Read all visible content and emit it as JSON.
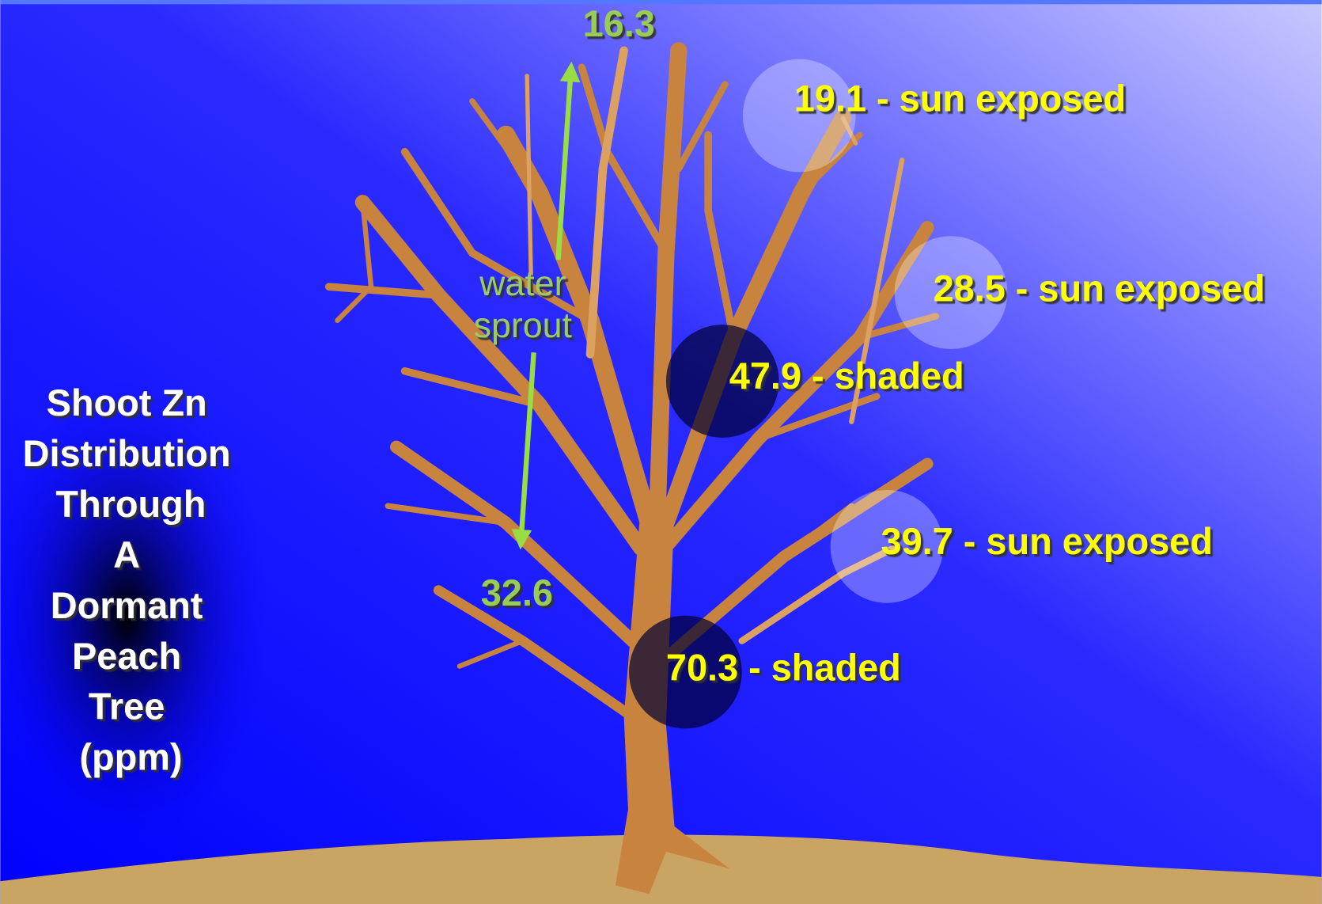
{
  "title": [
    "Shoot Zn",
    "Distribution",
    "Through",
    "A",
    "Dormant",
    "Peach",
    "Tree",
    "(ppm)"
  ],
  "water_sprout": {
    "label": [
      "water",
      "sprout"
    ],
    "top": "16.3",
    "bottom": "32.6"
  },
  "sites": [
    {
      "label": "19.1 - sun exposed"
    },
    {
      "label": "28.5 - sun exposed"
    },
    {
      "label": "47.9 - shaded"
    },
    {
      "label": "39.7 - sun exposed"
    },
    {
      "label": "70.3 - shaded"
    }
  ]
}
